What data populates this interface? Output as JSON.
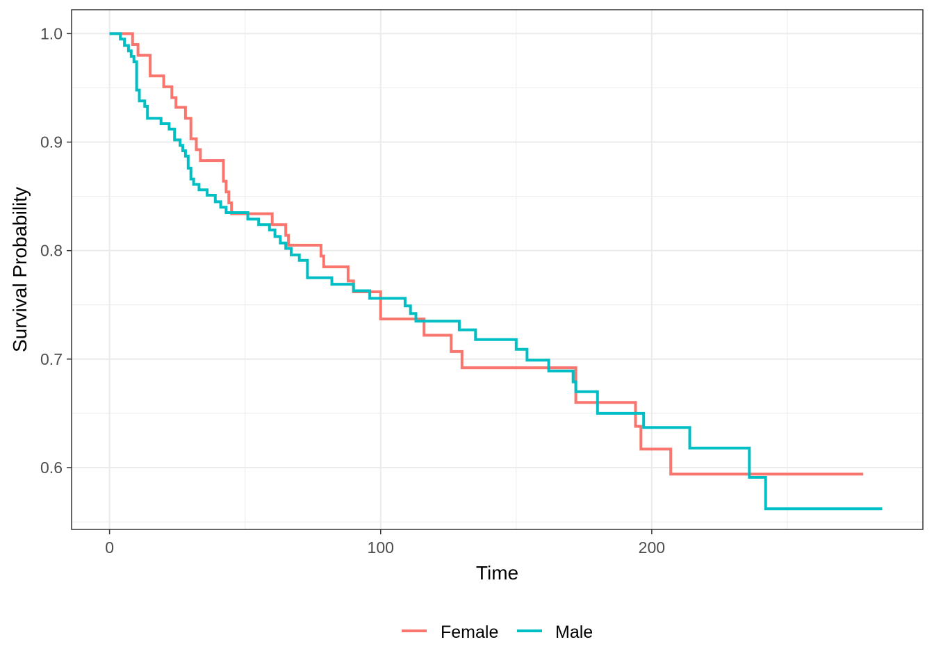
{
  "chart_data": {
    "type": "line",
    "step": true,
    "title": "",
    "xlabel": "Time",
    "ylabel": "Survival Probability",
    "xlim": [
      -14,
      300
    ],
    "ylim": [
      0.543,
      1.022
    ],
    "x_ticks": [
      0,
      100,
      200
    ],
    "x_tick_labels": [
      "0",
      "100",
      "200"
    ],
    "x_minor_ticks": [
      50,
      150,
      250
    ],
    "y_ticks": [
      0.6,
      0.7,
      0.8,
      0.9,
      1.0
    ],
    "y_tick_labels": [
      "0.6",
      "0.7",
      "0.8",
      "0.9",
      "1.0"
    ],
    "y_minor_ticks": [
      0.55,
      0.65,
      0.75,
      0.85,
      0.95
    ],
    "grid": true,
    "legend_position": "bottom",
    "colors": {
      "Female": "#F8766D",
      "Male": "#00BFC4",
      "grid": "#ebebeb",
      "panel_border": "#333333"
    },
    "series": [
      {
        "name": "Female",
        "color": "#F8766D",
        "x": [
          0,
          8.5,
          10.5,
          15,
          20,
          23,
          24.5,
          28,
          30,
          32,
          33.5,
          42,
          43,
          44,
          45,
          60,
          65,
          66,
          78,
          79,
          88,
          90,
          100,
          116,
          126,
          130,
          158,
          172,
          194,
          196,
          207,
          278
        ],
        "y": [
          1.0,
          0.99,
          0.98,
          0.961,
          0.951,
          0.941,
          0.932,
          0.922,
          0.903,
          0.893,
          0.883,
          0.864,
          0.854,
          0.844,
          0.834,
          0.824,
          0.814,
          0.805,
          0.795,
          0.785,
          0.772,
          0.762,
          0.737,
          0.722,
          0.707,
          0.692,
          0.692,
          0.66,
          0.638,
          0.617,
          0.594,
          0.594
        ]
      },
      {
        "name": "Male",
        "color": "#00BFC4",
        "x": [
          0,
          4,
          5.5,
          7,
          8,
          9,
          10,
          11,
          13,
          14,
          19,
          22,
          24,
          26,
          27,
          28,
          29,
          30,
          31,
          33,
          36,
          39,
          41,
          43,
          51,
          55,
          59,
          61,
          63,
          65,
          67,
          70,
          73,
          82,
          90,
          96,
          109,
          111,
          113,
          129,
          135,
          150,
          154,
          162,
          171,
          172,
          180,
          197,
          214,
          236,
          242,
          285
        ],
        "y": [
          1.0,
          0.995,
          0.989,
          0.984,
          0.979,
          0.974,
          0.948,
          0.938,
          0.933,
          0.922,
          0.917,
          0.912,
          0.902,
          0.897,
          0.892,
          0.887,
          0.876,
          0.866,
          0.861,
          0.856,
          0.851,
          0.845,
          0.84,
          0.835,
          0.829,
          0.824,
          0.819,
          0.813,
          0.807,
          0.802,
          0.796,
          0.791,
          0.775,
          0.769,
          0.763,
          0.756,
          0.749,
          0.742,
          0.735,
          0.727,
          0.718,
          0.709,
          0.699,
          0.689,
          0.679,
          0.67,
          0.65,
          0.637,
          0.618,
          0.591,
          0.562,
          0.562
        ]
      }
    ]
  }
}
